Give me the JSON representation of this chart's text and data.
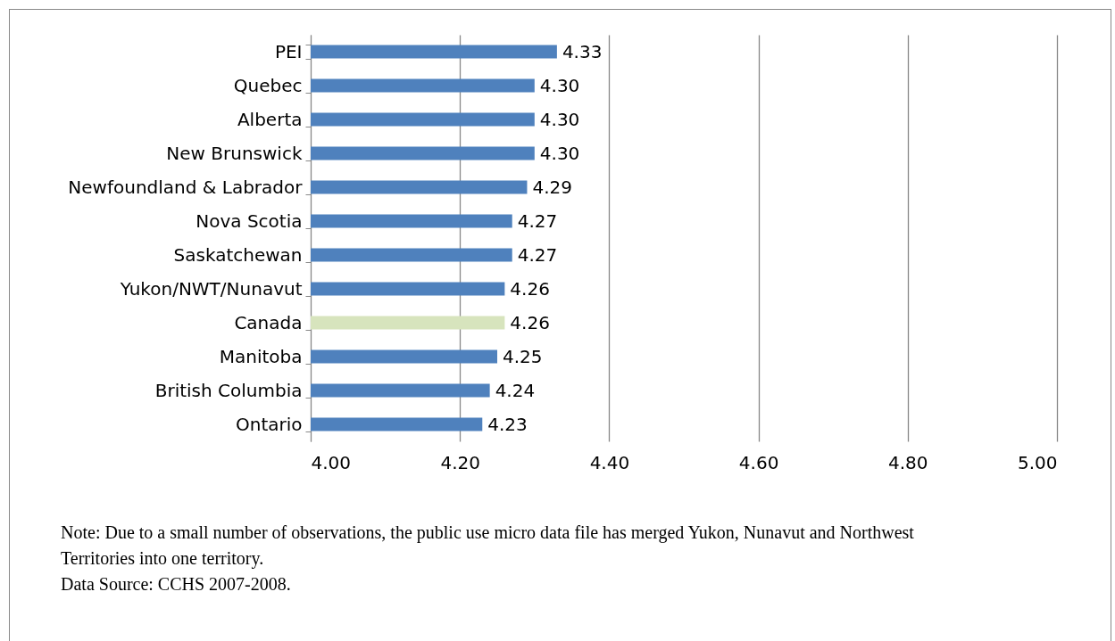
{
  "chart_data": {
    "type": "bar",
    "orientation": "horizontal",
    "categories": [
      "PEI",
      "Quebec",
      "Alberta",
      "New Brunswick",
      "Newfoundland & Labrador",
      "Nova Scotia",
      "Saskatchewan",
      "Yukon/NWT/Nunavut",
      "Canada",
      "Manitoba",
      "British Columbia",
      "Ontario"
    ],
    "values": [
      4.33,
      4.3,
      4.3,
      4.3,
      4.29,
      4.27,
      4.27,
      4.26,
      4.26,
      4.25,
      4.24,
      4.23
    ],
    "value_labels": [
      "4.33",
      "4.30",
      "4.30",
      "4.30",
      "4.29",
      "4.27",
      "4.27",
      "4.26",
      "4.26",
      "4.25",
      "4.24",
      "4.23"
    ],
    "colors": [
      "#4f81bd",
      "#4f81bd",
      "#4f81bd",
      "#4f81bd",
      "#4f81bd",
      "#4f81bd",
      "#4f81bd",
      "#4f81bd",
      "#d7e4bd",
      "#4f81bd",
      "#4f81bd",
      "#4f81bd"
    ],
    "xlim": [
      4.0,
      5.0
    ],
    "xticks": [
      {
        "value": 4.0,
        "label": "4.00"
      },
      {
        "value": 4.2,
        "label": "4.20"
      },
      {
        "value": 4.4,
        "label": "4.40"
      },
      {
        "value": 4.6,
        "label": "4.60"
      },
      {
        "value": 4.8,
        "label": "4.80"
      },
      {
        "value": 5.0,
        "label": "5.00"
      }
    ],
    "grid": "x",
    "annotations": [
      "Note:  Due to a small number of observations, the public use micro data file has merged Yukon, Nunavut and Northwest Territories into one territory.",
      "Data Source: CCHS 2007-2008."
    ]
  }
}
